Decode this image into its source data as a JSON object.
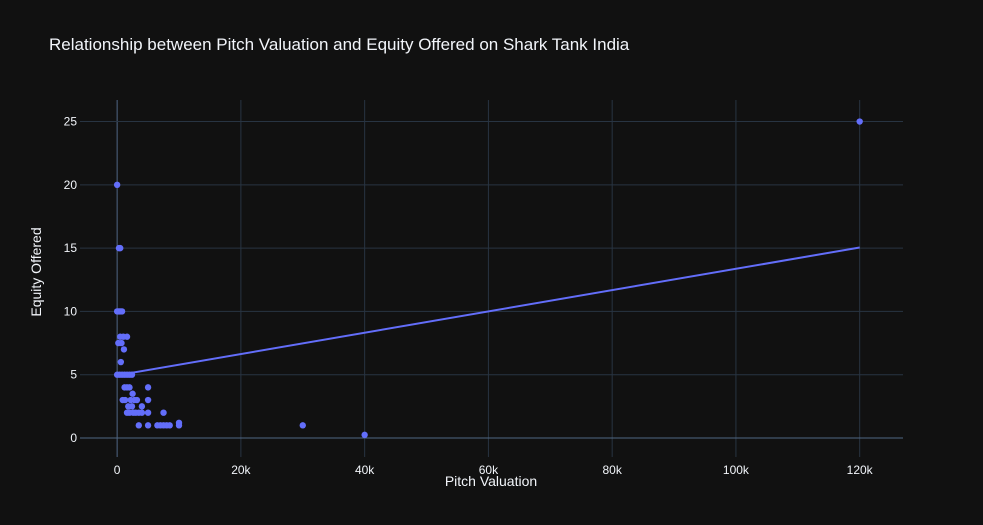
{
  "chart_data": {
    "type": "scatter",
    "title": "Relationship between Pitch Valuation and Equity Offered on Shark Tank India",
    "xlabel": "Pitch Valuation",
    "ylabel": "Equity Offered",
    "xlim": [
      -6000,
      127000
    ],
    "ylim": [
      -1.5,
      26.7
    ],
    "grid": true,
    "legend": "none",
    "x_ticks": [
      {
        "value": 0,
        "label": "0"
      },
      {
        "value": 20000,
        "label": "20k"
      },
      {
        "value": 40000,
        "label": "40k"
      },
      {
        "value": 60000,
        "label": "60k"
      },
      {
        "value": 80000,
        "label": "80k"
      },
      {
        "value": 100000,
        "label": "100k"
      },
      {
        "value": 120000,
        "label": "120k"
      }
    ],
    "y_ticks": [
      {
        "value": 0,
        "label": "0"
      },
      {
        "value": 5,
        "label": "5"
      },
      {
        "value": 10,
        "label": "10"
      },
      {
        "value": 15,
        "label": "15"
      },
      {
        "value": 20,
        "label": "20"
      },
      {
        "value": 25,
        "label": "25"
      }
    ],
    "points": [
      [
        120000,
        25
      ],
      [
        0,
        20
      ],
      [
        300,
        15
      ],
      [
        500,
        15
      ],
      [
        0,
        10
      ],
      [
        200,
        10
      ],
      [
        400,
        10
      ],
      [
        600,
        10
      ],
      [
        800,
        10
      ],
      [
        500,
        8
      ],
      [
        1000,
        8
      ],
      [
        1600,
        8
      ],
      [
        200,
        7.5
      ],
      [
        700,
        7.5
      ],
      [
        1100,
        7
      ],
      [
        600,
        6
      ],
      [
        0,
        5
      ],
      [
        400,
        5
      ],
      [
        800,
        5
      ],
      [
        1200,
        5
      ],
      [
        1600,
        5
      ],
      [
        2000,
        5
      ],
      [
        2400,
        5
      ],
      [
        1200,
        4
      ],
      [
        1600,
        4
      ],
      [
        2000,
        4
      ],
      [
        5000,
        4
      ],
      [
        2500,
        3.5
      ],
      [
        900,
        3
      ],
      [
        1300,
        3
      ],
      [
        2200,
        3
      ],
      [
        2800,
        3
      ],
      [
        3200,
        3
      ],
      [
        5000,
        3
      ],
      [
        1800,
        2.5
      ],
      [
        2400,
        2.5
      ],
      [
        4000,
        2.5
      ],
      [
        1600,
        2
      ],
      [
        2000,
        2
      ],
      [
        2600,
        2
      ],
      [
        3000,
        2
      ],
      [
        3500,
        2
      ],
      [
        4000,
        2
      ],
      [
        5000,
        2
      ],
      [
        7500,
        2
      ],
      [
        3500,
        1
      ],
      [
        5000,
        1
      ],
      [
        6500,
        1
      ],
      [
        7000,
        1
      ],
      [
        7500,
        1
      ],
      [
        8000,
        1
      ],
      [
        8500,
        1
      ],
      [
        10000,
        1.2
      ],
      [
        10000,
        1
      ],
      [
        30000,
        1
      ],
      [
        40000,
        0.25
      ]
    ],
    "trendline": {
      "type": "line",
      "points": [
        [
          0,
          4.95
        ],
        [
          120000,
          15.05
        ]
      ]
    },
    "colors": {
      "background": "#111111",
      "plot_bg": "#111111",
      "grid": "#283442",
      "zeroline": "#506784",
      "marker": "#636efa",
      "text": "#f2f5fa"
    }
  }
}
